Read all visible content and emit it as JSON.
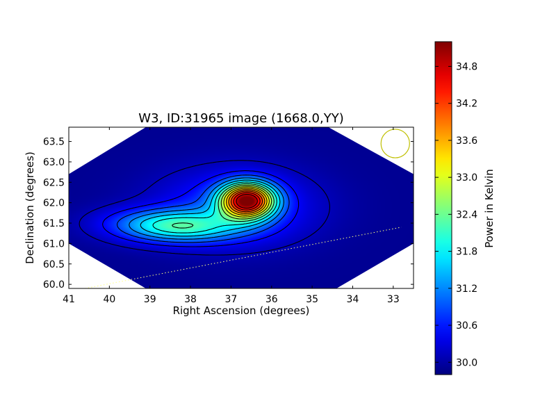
{
  "chart_data": {
    "type": "heatmap",
    "title": "W3, ID:31965 image (1668.0,YY)",
    "xlabel": "Right Ascension (degrees)",
    "ylabel": "Declination (degrees)",
    "xlim": [
      41.0,
      32.5
    ],
    "ylim": [
      59.9,
      63.85
    ],
    "x_ticks": [
      41,
      40,
      39,
      38,
      37,
      36,
      35,
      34,
      33
    ],
    "x_tick_labels": [
      "41",
      "40",
      "39",
      "38",
      "37",
      "36",
      "35",
      "34",
      "33"
    ],
    "y_ticks": [
      60.0,
      60.5,
      61.0,
      61.5,
      62.0,
      62.5,
      63.0,
      63.5
    ],
    "y_tick_labels": [
      "60.0",
      "60.5",
      "61.0",
      "61.5",
      "62.0",
      "62.5",
      "63.0",
      "63.5"
    ],
    "x_scale_reversed": true,
    "grid": false,
    "colormap": "jet",
    "colorbar": {
      "label": "Power in Kelvin",
      "range": [
        29.8,
        35.2
      ],
      "ticks": [
        30.0,
        30.6,
        31.2,
        31.8,
        32.4,
        33.0,
        33.6,
        34.2,
        34.8
      ],
      "tick_labels": [
        "30.0",
        "30.6",
        "31.2",
        "31.8",
        "32.4",
        "33.0",
        "33.6",
        "34.2",
        "34.8"
      ]
    },
    "peak": {
      "ra": 36.6,
      "dec": 62.05,
      "value": 35.2
    },
    "secondary_lobe": {
      "ra": 38.3,
      "dec": 61.4,
      "value": 32.1
    },
    "image_footprint_hexagon": [
      [
        41.0,
        62.7
      ],
      [
        39.1,
        63.85
      ],
      [
        34.6,
        63.85
      ],
      [
        32.5,
        62.7
      ],
      [
        32.5,
        61.0
      ],
      [
        34.4,
        59.9
      ],
      [
        39.1,
        59.9
      ],
      [
        41.0,
        61.0
      ]
    ],
    "galactic_plane_line": {
      "points": [
        [
          40.6,
          59.9
        ],
        [
          32.8,
          61.4
        ]
      ],
      "color": "#ffff80",
      "style": "dotted"
    },
    "beam_circle": {
      "ra": 32.95,
      "dec": 63.45,
      "radius_deg": 0.35,
      "color": "#bfbf00"
    }
  },
  "colors": {
    "contour": "#000000",
    "frame": "#000000"
  }
}
